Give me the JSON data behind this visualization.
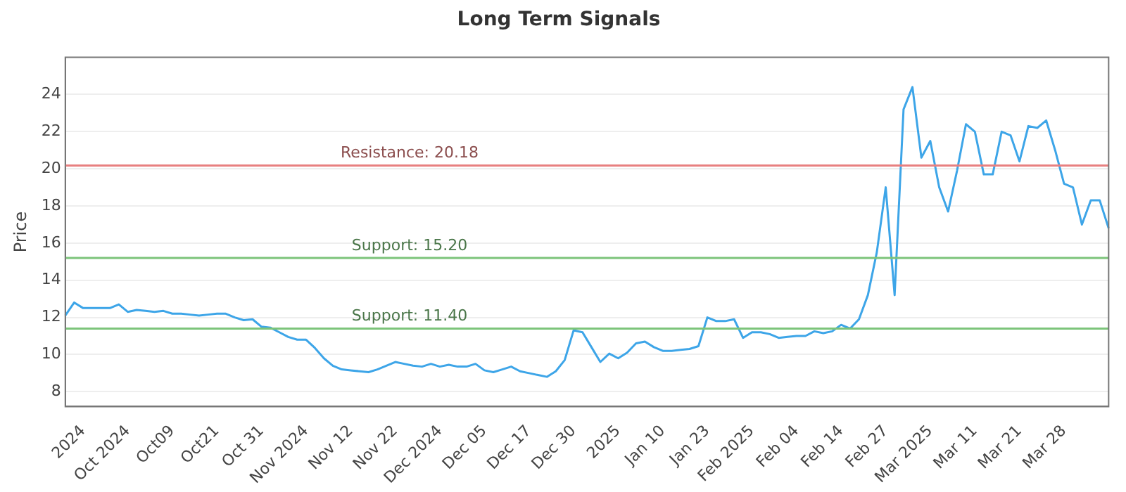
{
  "chart_data": {
    "type": "line",
    "title": "Long Term Signals",
    "ylabel": "Price",
    "categories": [
      null,
      null,
      "2024",
      null,
      null,
      null,
      null,
      "Oct 2024",
      null,
      null,
      null,
      null,
      "Oct09",
      null,
      null,
      null,
      null,
      "Oct21",
      null,
      null,
      null,
      null,
      "Oct 31",
      null,
      null,
      null,
      null,
      "Nov 2024",
      null,
      null,
      null,
      null,
      "Nov 12",
      null,
      null,
      null,
      null,
      "Nov 22",
      null,
      null,
      null,
      null,
      "Dec 2024",
      null,
      null,
      null,
      null,
      "Dec 05",
      null,
      null,
      null,
      null,
      "Dec 17",
      null,
      null,
      null,
      null,
      "Dec 30",
      null,
      null,
      null,
      null,
      "2025",
      null,
      null,
      null,
      null,
      "Jan 10",
      null,
      null,
      null,
      null,
      "Jan 23",
      null,
      null,
      null,
      null,
      "Feb 2025",
      null,
      null,
      null,
      null,
      "Feb 04",
      null,
      null,
      null,
      null,
      "Feb 14",
      null,
      null,
      null,
      null,
      "Feb 27",
      null,
      null,
      null,
      null,
      "Mar 2025",
      null,
      null,
      null,
      null,
      "Mar 11",
      null,
      null,
      null,
      null,
      "Mar 21",
      null,
      null,
      null,
      null,
      "Mar 28",
      null,
      null,
      null,
      null,
      null
    ],
    "series": [
      {
        "color": "#3da5e8",
        "values": [
          12.1,
          12.8,
          12.5,
          12.5,
          12.5,
          12.5,
          12.7,
          12.3,
          12.4,
          12.35,
          12.3,
          12.35,
          12.2,
          12.2,
          12.15,
          12.1,
          12.15,
          12.2,
          12.2,
          12.0,
          11.85,
          11.9,
          11.5,
          11.45,
          11.2,
          10.95,
          10.8,
          10.8,
          10.35,
          9.8,
          9.4,
          9.2,
          9.15,
          9.1,
          9.05,
          9.2,
          9.4,
          9.6,
          9.5,
          9.4,
          9.35,
          9.5,
          9.35,
          9.45,
          9.35,
          9.35,
          9.5,
          9.15,
          9.05,
          9.2,
          9.35,
          9.1,
          9.0,
          8.9,
          8.8,
          9.1,
          9.7,
          11.3,
          11.2,
          10.4,
          9.6,
          10.05,
          9.8,
          10.1,
          10.6,
          10.7,
          10.4,
          10.2,
          10.2,
          10.25,
          10.3,
          10.45,
          12.0,
          11.8,
          11.8,
          11.9,
          10.9,
          11.2,
          11.2,
          11.1,
          10.9,
          10.95,
          11.0,
          11.0,
          11.25,
          11.15,
          11.25,
          11.6,
          11.4,
          11.9,
          13.2,
          15.5,
          19.0,
          13.2,
          23.2,
          24.4,
          20.6,
          21.5,
          19.0,
          17.7,
          19.9,
          22.4,
          22.0,
          19.7,
          19.7,
          22.0,
          21.8,
          20.4,
          22.3,
          22.2,
          22.6,
          21.0,
          19.2,
          19.0,
          17.0,
          18.3,
          18.3,
          16.8
        ]
      }
    ],
    "ylim": [
      7.2,
      26
    ],
    "yticks": [
      8,
      10,
      12,
      14,
      16,
      18,
      20,
      22,
      24
    ],
    "grid": "y",
    "legend": false,
    "marker": "none",
    "line_style": "solid",
    "ref_lines": [
      {
        "axis": "y",
        "value": 20.18,
        "label": "Resistance: 20.18",
        "color": "#e88080"
      },
      {
        "axis": "y",
        "value": 15.2,
        "label": "Support: 15.20",
        "color": "#7cc47a"
      },
      {
        "axis": "y",
        "value": 11.4,
        "label": "Support: 11.40",
        "color": "#7cc47a"
      }
    ]
  }
}
